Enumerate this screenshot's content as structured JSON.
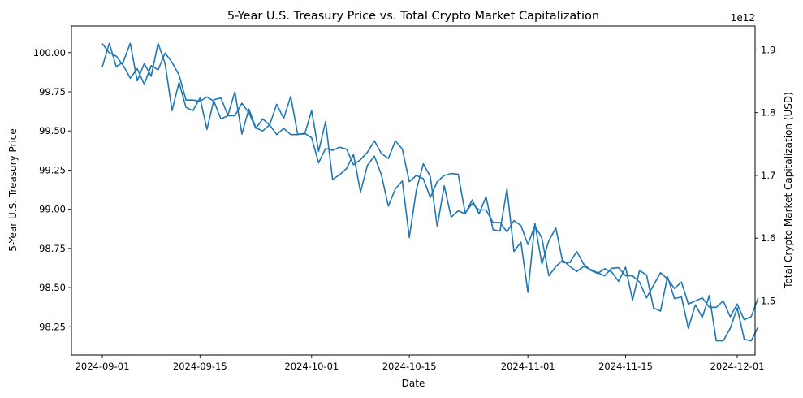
{
  "chart_data": {
    "type": "line",
    "title": "5-Year U.S. Treasury Price vs. Total Crypto Market Capitalization",
    "xlabel": "Date",
    "ylabel_left": "5-Year U.S. Treasury Price",
    "ylabel_right": "Total Crypto Market Capitalization (USD)",
    "right_axis_offset_label": "1e12",
    "x_start": "2024-09-01",
    "x_ticks": [
      "2024-09-01",
      "2024-09-15",
      "2024-10-01",
      "2024-10-15",
      "2024-11-01",
      "2024-11-15",
      "2024-12-01"
    ],
    "y_left_ticks": [
      "98.25",
      "98.50",
      "98.75",
      "99.00",
      "99.25",
      "99.50",
      "99.75",
      "100.00"
    ],
    "y_left_tick_values": [
      98.25,
      98.5,
      98.75,
      99.0,
      99.25,
      99.5,
      99.75,
      100.0
    ],
    "y_left_lim": [
      98.07,
      100.17
    ],
    "y_right_ticks": [
      "1.5",
      "1.6",
      "1.7",
      "1.8",
      "1.9"
    ],
    "y_right_tick_values": [
      1.5,
      1.6,
      1.7,
      1.8,
      1.9
    ],
    "y_right_lim": [
      1.414,
      1.938
    ],
    "line_color": "#1f77b4",
    "series": [
      {
        "name": "5-Year U.S. Treasury Price",
        "axis": "left",
        "values": [
          99.91,
          100.06,
          99.91,
          99.94,
          100.06,
          99.82,
          99.93,
          99.85,
          100.06,
          99.93,
          99.63,
          99.81,
          99.65,
          99.63,
          99.71,
          99.51,
          99.7,
          99.71,
          99.6,
          99.75,
          99.48,
          99.64,
          99.52,
          99.5,
          99.54,
          99.67,
          99.58,
          99.72,
          99.48,
          99.48,
          99.63,
          99.37,
          99.56,
          99.19,
          99.22,
          99.26,
          99.35,
          99.11,
          99.28,
          99.34,
          99.22,
          99.02,
          99.13,
          99.18,
          98.82,
          99.12,
          99.29,
          99.21,
          98.89,
          99.15,
          98.95,
          98.99,
          98.97,
          99.06,
          98.97,
          99.08,
          98.87,
          98.86,
          99.13,
          98.73,
          98.79,
          98.47,
          98.91,
          98.65,
          98.8,
          98.88,
          98.66,
          98.66,
          98.73,
          98.65,
          98.61,
          98.59,
          98.62,
          98.6,
          98.54,
          98.63,
          98.42,
          98.61,
          98.58,
          98.37,
          98.35,
          98.57,
          98.43,
          98.44,
          98.24,
          98.39,
          98.31,
          98.45,
          98.16,
          98.16,
          98.24,
          98.37,
          98.17,
          98.16,
          98.25
        ]
      },
      {
        "name": "Total Crypto Market Capitalization (USD)",
        "axis": "right",
        "values": [
          1.91,
          1.895,
          1.89,
          1.875,
          1.855,
          1.87,
          1.845,
          1.875,
          1.868,
          1.895,
          1.88,
          1.86,
          1.82,
          1.82,
          1.818,
          1.825,
          1.818,
          1.79,
          1.795,
          1.795,
          1.815,
          1.8,
          1.775,
          1.79,
          1.78,
          1.765,
          1.775,
          1.765,
          1.765,
          1.767,
          1.76,
          1.72,
          1.743,
          1.74,
          1.745,
          1.742,
          1.717,
          1.725,
          1.737,
          1.755,
          1.735,
          1.727,
          1.755,
          1.742,
          1.69,
          1.7,
          1.695,
          1.665,
          1.69,
          1.7,
          1.703,
          1.702,
          1.64,
          1.655,
          1.645,
          1.645,
          1.625,
          1.625,
          1.61,
          1.628,
          1.62,
          1.59,
          1.62,
          1.6,
          1.54,
          1.555,
          1.565,
          1.555,
          1.547,
          1.555,
          1.55,
          1.545,
          1.54,
          1.552,
          1.553,
          1.54,
          1.54,
          1.53,
          1.505,
          1.525,
          1.545,
          1.535,
          1.52,
          1.53,
          1.495,
          1.5,
          1.505,
          1.49,
          1.49,
          1.5,
          1.475,
          1.495,
          1.47,
          1.475,
          1.505
        ]
      }
    ]
  }
}
